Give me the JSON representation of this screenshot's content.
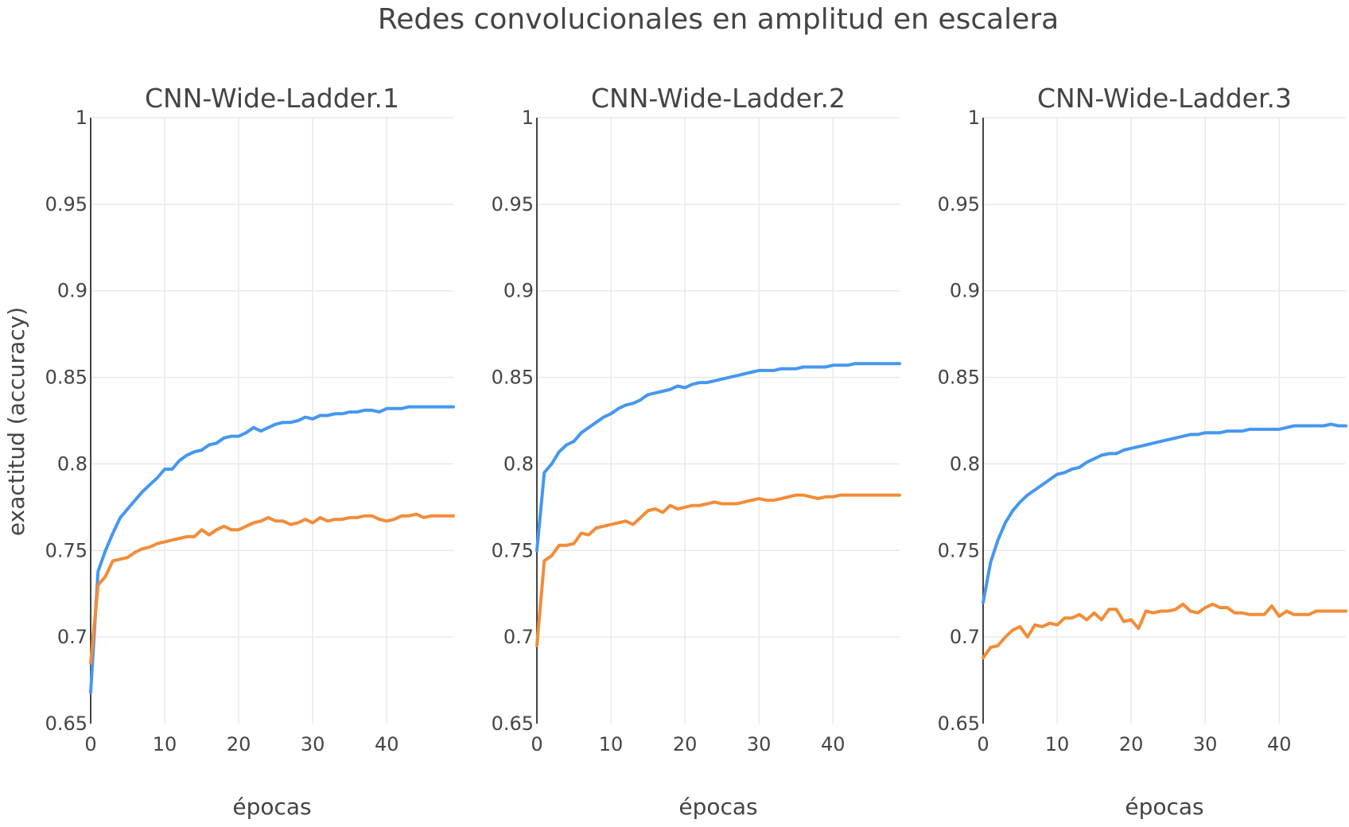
{
  "title": "Redes convolucionales en amplitud en escalera",
  "shared_ylabel": "exactitud (accuracy)",
  "colors": {
    "series_a": "#4597f0",
    "series_b": "#f28c38",
    "grid": "#e9e9e9",
    "text": "#444444"
  },
  "chart_data": [
    {
      "type": "line",
      "title": "CNN-Wide-Ladder.1",
      "xlabel": "épocas",
      "ylabel": "exactitud (accuracy)",
      "xlim": [
        0,
        49
      ],
      "ylim": [
        0.65,
        1
      ],
      "xticks": [
        "0",
        "10",
        "20",
        "30",
        "40"
      ],
      "yticks": [
        "0.65",
        "0.7",
        "0.75",
        "0.8",
        "0.85",
        "0.9",
        "0.95",
        "1"
      ],
      "grid": true,
      "series": [
        {
          "color": "#4597f0",
          "x_start": 0,
          "values": [
            0.668,
            0.738,
            0.75,
            0.76,
            0.769,
            0.774,
            0.779,
            0.784,
            0.788,
            0.792,
            0.797,
            0.797,
            0.802,
            0.805,
            0.807,
            0.808,
            0.811,
            0.812,
            0.815,
            0.816,
            0.816,
            0.818,
            0.821,
            0.819,
            0.821,
            0.823,
            0.824,
            0.824,
            0.825,
            0.827,
            0.826,
            0.828,
            0.828,
            0.829,
            0.829,
            0.83,
            0.83,
            0.831,
            0.831,
            0.83,
            0.832,
            0.832,
            0.832,
            0.833,
            0.833,
            0.833,
            0.833,
            0.833,
            0.833,
            0.833
          ]
        },
        {
          "color": "#f28c38",
          "x_start": 0,
          "values": [
            0.685,
            0.73,
            0.735,
            0.744,
            0.745,
            0.746,
            0.749,
            0.751,
            0.752,
            0.754,
            0.755,
            0.756,
            0.757,
            0.758,
            0.758,
            0.762,
            0.759,
            0.762,
            0.764,
            0.762,
            0.762,
            0.764,
            0.766,
            0.767,
            0.769,
            0.767,
            0.767,
            0.765,
            0.766,
            0.768,
            0.766,
            0.769,
            0.767,
            0.768,
            0.768,
            0.769,
            0.769,
            0.77,
            0.77,
            0.768,
            0.767,
            0.768,
            0.77,
            0.77,
            0.771,
            0.769,
            0.77,
            0.77,
            0.77,
            0.77
          ]
        }
      ]
    },
    {
      "type": "line",
      "title": "CNN-Wide-Ladder.2",
      "xlabel": "épocas",
      "ylabel": "",
      "xlim": [
        0,
        49
      ],
      "ylim": [
        0.65,
        1
      ],
      "xticks": [
        "0",
        "10",
        "20",
        "30",
        "40"
      ],
      "yticks": [
        "0.65",
        "0.7",
        "0.75",
        "0.8",
        "0.85",
        "0.9",
        "0.95",
        "1"
      ],
      "grid": true,
      "series": [
        {
          "color": "#4597f0",
          "x_start": 0,
          "values": [
            0.75,
            0.795,
            0.8,
            0.807,
            0.811,
            0.813,
            0.818,
            0.821,
            0.824,
            0.827,
            0.829,
            0.832,
            0.834,
            0.835,
            0.837,
            0.84,
            0.841,
            0.842,
            0.843,
            0.845,
            0.844,
            0.846,
            0.847,
            0.847,
            0.848,
            0.849,
            0.85,
            0.851,
            0.852,
            0.853,
            0.854,
            0.854,
            0.854,
            0.855,
            0.855,
            0.855,
            0.856,
            0.856,
            0.856,
            0.856,
            0.857,
            0.857,
            0.857,
            0.858,
            0.858,
            0.858,
            0.858,
            0.858,
            0.858,
            0.858
          ]
        },
        {
          "color": "#f28c38",
          "x_start": 0,
          "values": [
            0.695,
            0.744,
            0.747,
            0.753,
            0.753,
            0.754,
            0.76,
            0.759,
            0.763,
            0.764,
            0.765,
            0.766,
            0.767,
            0.765,
            0.769,
            0.773,
            0.774,
            0.772,
            0.776,
            0.774,
            0.775,
            0.776,
            0.776,
            0.777,
            0.778,
            0.777,
            0.777,
            0.777,
            0.778,
            0.779,
            0.78,
            0.779,
            0.779,
            0.78,
            0.781,
            0.782,
            0.782,
            0.781,
            0.78,
            0.781,
            0.781,
            0.782,
            0.782,
            0.782,
            0.782,
            0.782,
            0.782,
            0.782,
            0.782,
            0.782
          ]
        }
      ]
    },
    {
      "type": "line",
      "title": "CNN-Wide-Ladder.3",
      "xlabel": "épocas",
      "ylabel": "",
      "xlim": [
        0,
        49
      ],
      "ylim": [
        0.65,
        1
      ],
      "xticks": [
        "0",
        "10",
        "20",
        "30",
        "40"
      ],
      "yticks": [
        "0.65",
        "0.7",
        "0.75",
        "0.8",
        "0.85",
        "0.9",
        "0.95",
        "1"
      ],
      "grid": true,
      "series": [
        {
          "color": "#4597f0",
          "x_start": 0,
          "values": [
            0.72,
            0.743,
            0.756,
            0.766,
            0.773,
            0.778,
            0.782,
            0.785,
            0.788,
            0.791,
            0.794,
            0.795,
            0.797,
            0.798,
            0.801,
            0.803,
            0.805,
            0.806,
            0.806,
            0.808,
            0.809,
            0.81,
            0.811,
            0.812,
            0.813,
            0.814,
            0.815,
            0.816,
            0.817,
            0.817,
            0.818,
            0.818,
            0.818,
            0.819,
            0.819,
            0.819,
            0.82,
            0.82,
            0.82,
            0.82,
            0.82,
            0.821,
            0.822,
            0.822,
            0.822,
            0.822,
            0.822,
            0.823,
            0.822,
            0.822
          ]
        },
        {
          "color": "#f28c38",
          "x_start": 0,
          "values": [
            0.688,
            0.694,
            0.695,
            0.7,
            0.704,
            0.706,
            0.7,
            0.707,
            0.706,
            0.708,
            0.707,
            0.711,
            0.711,
            0.713,
            0.71,
            0.714,
            0.71,
            0.716,
            0.716,
            0.709,
            0.71,
            0.705,
            0.715,
            0.714,
            0.715,
            0.715,
            0.716,
            0.719,
            0.715,
            0.714,
            0.717,
            0.719,
            0.717,
            0.717,
            0.714,
            0.714,
            0.713,
            0.713,
            0.713,
            0.718,
            0.712,
            0.715,
            0.713,
            0.713,
            0.713,
            0.715,
            0.715,
            0.715,
            0.715,
            0.715
          ]
        }
      ]
    }
  ]
}
